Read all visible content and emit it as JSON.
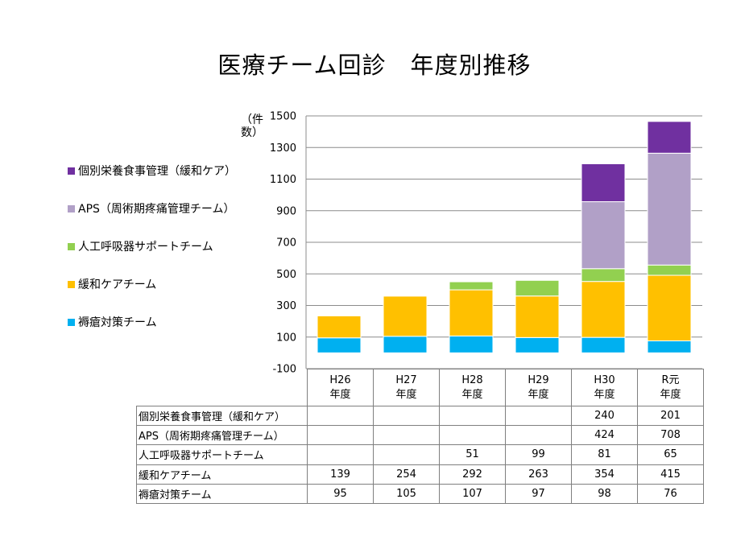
{
  "page": {
    "title": "医療チーム回診　年度別推移"
  },
  "chart_data": {
    "type": "bar",
    "stacked": true,
    "title": "医療チーム回診　年度別推移",
    "ylabel": "（件数）",
    "ylim": [
      -100,
      1500
    ],
    "yticks": [
      "1500",
      "1300",
      "1100",
      "900",
      "700",
      "500",
      "300",
      "100",
      "-100"
    ],
    "grid": true,
    "legend_position": "left",
    "categories": [
      {
        "line1": "H26",
        "line2": "年度"
      },
      {
        "line1": "H27",
        "line2": "年度"
      },
      {
        "line1": "H28",
        "line2": "年度"
      },
      {
        "line1": "H29",
        "line2": "年度"
      },
      {
        "line1": "H30",
        "line2": "年度"
      },
      {
        "line1": "R元",
        "line2": "年度"
      }
    ],
    "series": [
      {
        "name": "褥瘡対策チーム",
        "color": "#00b0f0",
        "values": [
          95,
          105,
          107,
          97,
          98,
          76
        ],
        "labels": [
          "95",
          "105",
          "107",
          "97",
          "98",
          "76"
        ]
      },
      {
        "name": "緩和ケアチーム",
        "color": "#ffc000",
        "values": [
          139,
          254,
          292,
          263,
          354,
          415
        ],
        "labels": [
          "139",
          "254",
          "292",
          "263",
          "354",
          "415"
        ]
      },
      {
        "name": "人工呼吸器サポートチーム",
        "color": "#92d050",
        "values": [
          0,
          0,
          51,
          99,
          81,
          65
        ],
        "labels": [
          "",
          "",
          "51",
          "99",
          "81",
          "65"
        ]
      },
      {
        "name": "APS（周術期疼痛管理チーム）",
        "color": "#b1a0c7",
        "values": [
          0,
          0,
          0,
          0,
          424,
          708
        ],
        "labels": [
          "",
          "",
          "",
          "",
          "424",
          "708"
        ]
      },
      {
        "name": "個別栄養食事管理（緩和ケア）",
        "color": "#7030a0",
        "values": [
          0,
          0,
          0,
          0,
          240,
          201
        ],
        "labels": [
          "",
          "",
          "",
          "",
          "240",
          "201"
        ]
      }
    ]
  }
}
